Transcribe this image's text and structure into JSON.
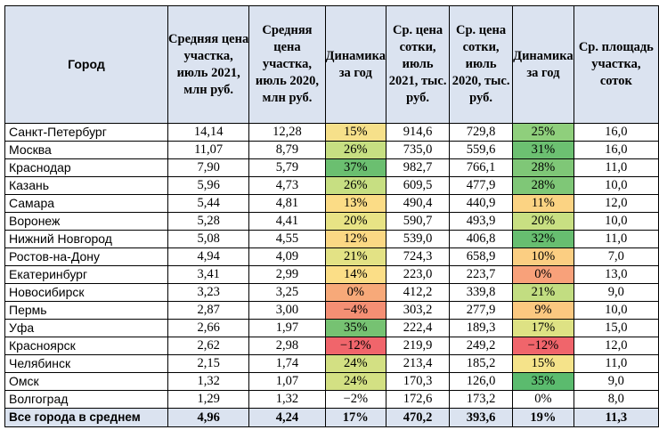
{
  "headers": [
    "Город",
    "Средняя цена участка, июль 2021, млн руб.",
    "Средняя цена участка, июль 2020, млн руб.",
    "Динамика за год",
    "Ср. цена сотки, июль 2021, тыс. руб.",
    "Ср. цена сотки, июль 2020, тыс. руб.",
    "Динамика за год",
    "Ср. площадь участка, соток"
  ],
  "rows": [
    {
      "city": "Санкт-Петербург",
      "p2021": "14,14",
      "p2020": "12,28",
      "d1": "15%",
      "d1_color": "#f6e08a",
      "s2021": "914,6",
      "s2020": "729,8",
      "d2": "25%",
      "d2_color": "#8fcf7c",
      "area": "16,0"
    },
    {
      "city": "Москва",
      "p2021": "11,07",
      "p2020": "8,79",
      "d1": "26%",
      "d1_color": "#c7df82",
      "s2021": "735,0",
      "s2020": "559,6",
      "d2": "31%",
      "d2_color": "#6cc071",
      "area": "16,0"
    },
    {
      "city": "Краснодар",
      "p2021": "7,90",
      "p2020": "5,79",
      "d1": "37%",
      "d1_color": "#6bbf70",
      "s2021": "982,7",
      "s2020": "766,1",
      "d2": "28%",
      "d2_color": "#7fc777",
      "area": "11,0"
    },
    {
      "city": "Казань",
      "p2021": "5,96",
      "p2020": "4,73",
      "d1": "26%",
      "d1_color": "#c7df82",
      "s2021": "609,5",
      "s2020": "477,9",
      "d2": "28%",
      "d2_color": "#7fc777",
      "area": "10,0"
    },
    {
      "city": "Самара",
      "p2021": "5,44",
      "p2020": "4,81",
      "d1": "13%",
      "d1_color": "#fbdc86",
      "s2021": "490,4",
      "s2020": "440,9",
      "d2": "11%",
      "d2_color": "#fbd383",
      "area": "12,0"
    },
    {
      "city": "Воронеж",
      "p2021": "5,28",
      "p2020": "4,41",
      "d1": "20%",
      "d1_color": "#e8e385",
      "s2021": "590,7",
      "s2020": "493,9",
      "d2": "20%",
      "d2_color": "#c8df82",
      "area": "10,0"
    },
    {
      "city": "Нижний Новгород",
      "p2021": "5,08",
      "p2020": "4,55",
      "d1": "12%",
      "d1_color": "#fbd884",
      "s2021": "539,0",
      "s2020": "406,8",
      "d2": "32%",
      "d2_color": "#67be70",
      "area": "11,0"
    },
    {
      "city": "Ростов-на-Дону",
      "p2021": "4,94",
      "p2020": "4,09",
      "d1": "21%",
      "d1_color": "#e3e285",
      "s2021": "724,3",
      "s2020": "658,9",
      "d2": "10%",
      "d2_color": "#fbce82",
      "area": "7,0"
    },
    {
      "city": "Екатеринбург",
      "p2021": "3,41",
      "p2020": "2,99",
      "d1": "14%",
      "d1_color": "#fbde87",
      "s2021": "223,0",
      "s2020": "223,7",
      "d2": "0%",
      "d2_color": "#f8a17a",
      "area": "13,0"
    },
    {
      "city": "Новосибирск",
      "p2021": "3,23",
      "p2020": "3,25",
      "d1": "0%",
      "d1_color": "#f7a979",
      "s2021": "412,2",
      "s2020": "339,8",
      "d2": "21%",
      "d2_color": "#c2dd81",
      "area": "9,0"
    },
    {
      "city": "Пермь",
      "p2021": "2,87",
      "p2020": "3,00",
      "d1": "−4%",
      "d1_color": "#f48f74",
      "s2021": "303,2",
      "s2020": "277,9",
      "d2": "9%",
      "d2_color": "#fbc880",
      "area": "10,0"
    },
    {
      "city": "Уфа",
      "p2021": "2,66",
      "p2020": "1,97",
      "d1": "35%",
      "d1_color": "#76c272",
      "s2021": "222,4",
      "s2020": "189,3",
      "d2": "17%",
      "d2_color": "#dee284",
      "area": "15,0"
    },
    {
      "city": "Красноярск",
      "p2021": "2,62",
      "p2020": "2,98",
      "d1": "−12%",
      "d1_color": "#f0656b",
      "s2021": "219,9",
      "s2020": "249,2",
      "d2": "−12%",
      "d2_color": "#f0656b",
      "area": "12,0"
    },
    {
      "city": "Челябинск",
      "p2021": "2,15",
      "p2020": "1,74",
      "d1": "24%",
      "d1_color": "#d3e083",
      "s2021": "213,4",
      "s2020": "185,2",
      "d2": "15%",
      "d2_color": "#f5e38a",
      "area": "11,0"
    },
    {
      "city": "Омск",
      "p2021": "1,32",
      "p2020": "1,07",
      "d1": "24%",
      "d1_color": "#d3e083",
      "s2021": "170,3",
      "s2020": "126,0",
      "d2": "35%",
      "d2_color": "#5bbb6e",
      "area": "9,0"
    },
    {
      "city": "Волгоград",
      "p2021": "1,29",
      "p2020": "1,32",
      "d1": "−2%",
      "d1_color": "#ffffff",
      "s2021": "172,6",
      "s2020": "173,2",
      "d2": "0%",
      "d2_color": "#ffffff",
      "area": "8,0"
    }
  ],
  "total": {
    "city": "Все города в среднем",
    "p2021": "4,96",
    "p2020": "4,24",
    "d1": "17%",
    "s2021": "470,2",
    "s2020": "393,6",
    "d2": "19%",
    "area": "11,3"
  }
}
